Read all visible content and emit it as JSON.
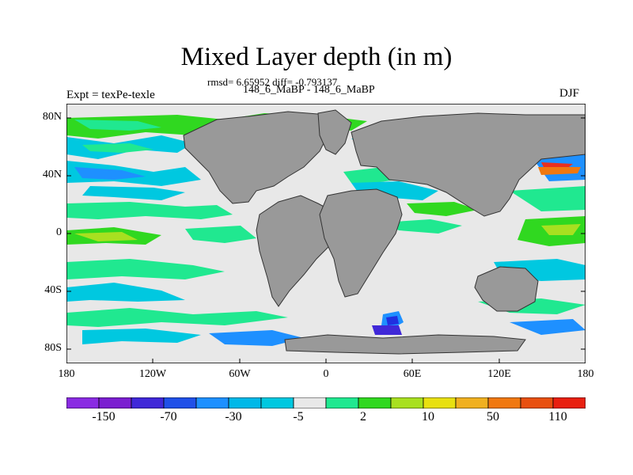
{
  "title": "Mixed Layer depth (in m)",
  "stats": "rmsd= 6.65952 diff= -0.793137",
  "runs": "148_6_MaBP - 148_6_MaBP",
  "experiment": "Expt = texPe-texle",
  "season": "DJF",
  "lat_labels": [
    "80N",
    "40N",
    "0",
    "40S",
    "80S"
  ],
  "lon_labels": [
    "180",
    "120W",
    "60W",
    "0",
    "60E",
    "120E",
    "180"
  ],
  "colorbar": {
    "colors": [
      "#8a2be2",
      "#7b1fd0",
      "#4028d8",
      "#2050e8",
      "#1e90ff",
      "#00b8e8",
      "#00c8e0",
      "#e8e8e8",
      "#20e890",
      "#30d820",
      "#a8e020",
      "#e8e010",
      "#f0b020",
      "#f07810",
      "#e85010",
      "#e82010"
    ],
    "labels": [
      "-150",
      "-70",
      "-30",
      "-5",
      "2",
      "10",
      "50",
      "110"
    ]
  },
  "colors": {
    "land": "#999999",
    "ocean_zero": "#e8e8e8",
    "positive_green": "#30d820",
    "positive_teal": "#20e890",
    "negative_cyan": "#00c8e0",
    "negative_blue": "#1e90ff",
    "deep_blue": "#2030e0",
    "strong_red": "#e83020"
  }
}
